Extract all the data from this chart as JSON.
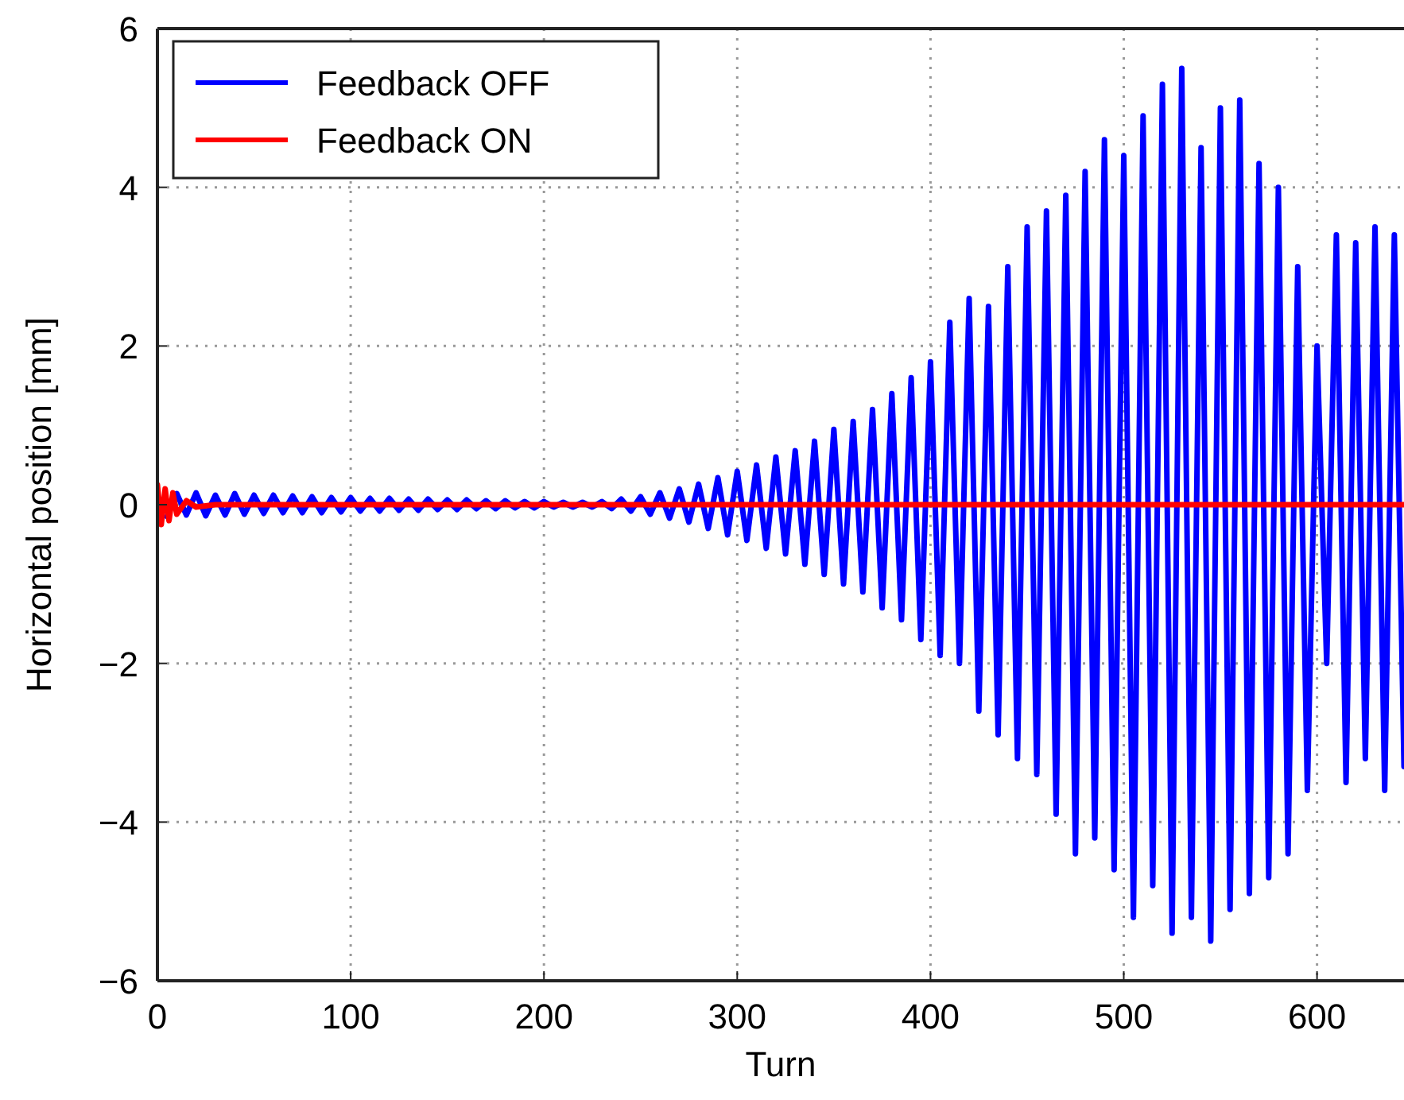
{
  "chart_data": {
    "type": "line",
    "xlabel": "Turn",
    "ylabel": "Horizontal position [mm]",
    "xlim": [
      0,
      645
    ],
    "ylim": [
      -6,
      6
    ],
    "xticks": [
      0,
      100,
      200,
      300,
      400,
      500,
      600
    ],
    "yticks": [
      {
        "value": -6,
        "label": "−6"
      },
      {
        "value": -4,
        "label": "−4"
      },
      {
        "value": -2,
        "label": "−2"
      },
      0,
      2,
      4,
      6
    ],
    "grid": true,
    "legend": "top left",
    "line_style": "solid",
    "marker": "none",
    "series": [
      {
        "name": "Feedback OFF",
        "color": "#0000ff",
        "x": [
          5,
          10,
          15,
          20,
          25,
          30,
          35,
          40,
          45,
          50,
          55,
          60,
          65,
          70,
          75,
          80,
          85,
          90,
          95,
          100,
          105,
          110,
          115,
          120,
          125,
          130,
          135,
          140,
          145,
          150,
          155,
          160,
          165,
          170,
          175,
          180,
          185,
          190,
          195,
          200,
          205,
          210,
          215,
          220,
          225,
          230,
          235,
          240,
          245,
          250,
          255,
          260,
          265,
          270,
          275,
          280,
          285,
          290,
          295,
          300,
          305,
          310,
          315,
          320,
          325,
          330,
          335,
          340,
          345,
          350,
          355,
          360,
          365,
          370,
          375,
          380,
          385,
          390,
          395,
          400,
          405,
          410,
          415,
          420,
          425,
          430,
          435,
          440,
          445,
          450,
          455,
          460,
          465,
          470,
          475,
          480,
          485,
          490,
          495,
          500,
          505,
          510,
          515,
          520,
          525,
          530,
          535,
          540,
          545,
          550,
          555,
          560,
          565,
          570,
          575,
          580,
          585,
          590,
          595,
          600,
          605,
          610,
          615,
          620,
          625,
          630,
          635,
          640,
          645
        ],
        "values": [
          -0.15,
          0.14,
          -0.13,
          0.15,
          -0.14,
          0.12,
          -0.13,
          0.14,
          -0.12,
          0.12,
          -0.11,
          0.12,
          -0.1,
          0.11,
          -0.1,
          0.1,
          -0.1,
          0.09,
          -0.09,
          0.09,
          -0.08,
          0.08,
          -0.08,
          0.08,
          -0.07,
          0.07,
          -0.07,
          0.07,
          -0.06,
          0.06,
          -0.06,
          0.06,
          -0.05,
          0.05,
          -0.05,
          0.05,
          -0.04,
          0.04,
          -0.04,
          0.04,
          -0.03,
          0.03,
          -0.03,
          0.03,
          -0.03,
          0.04,
          -0.05,
          0.07,
          -0.08,
          0.1,
          -0.12,
          0.15,
          -0.17,
          0.2,
          -0.22,
          0.26,
          -0.3,
          0.34,
          -0.38,
          0.42,
          -0.45,
          0.5,
          -0.55,
          0.6,
          -0.62,
          0.68,
          -0.75,
          0.8,
          -0.88,
          0.95,
          -1.0,
          1.05,
          -1.1,
          1.2,
          -1.3,
          1.4,
          -1.45,
          1.6,
          -1.7,
          1.8,
          -1.9,
          2.3,
          -2.0,
          2.6,
          -2.6,
          2.5,
          -2.9,
          3.0,
          -3.2,
          3.5,
          -3.4,
          3.7,
          -3.9,
          3.9,
          -4.4,
          4.2,
          -4.2,
          4.6,
          -4.6,
          4.4,
          -5.2,
          4.9,
          -4.8,
          5.3,
          -5.4,
          5.5,
          -5.2,
          4.5,
          -5.5,
          5.0,
          -5.1,
          5.1,
          -4.9,
          4.3,
          -4.7,
          4.0,
          -4.4,
          3.0,
          -3.6,
          2.0,
          -2.0,
          3.4,
          -3.5,
          3.3,
          -3.2,
          3.5,
          -3.6,
          3.4,
          -3.3
        ]
      },
      {
        "name": "Feedback ON",
        "color": "#ff0000",
        "x": [
          0,
          2,
          4,
          6,
          8,
          10,
          15,
          20,
          30,
          645
        ],
        "values": [
          0.25,
          -0.25,
          0.2,
          -0.2,
          0.15,
          -0.12,
          0.05,
          -0.03,
          0,
          0
        ]
      }
    ]
  }
}
